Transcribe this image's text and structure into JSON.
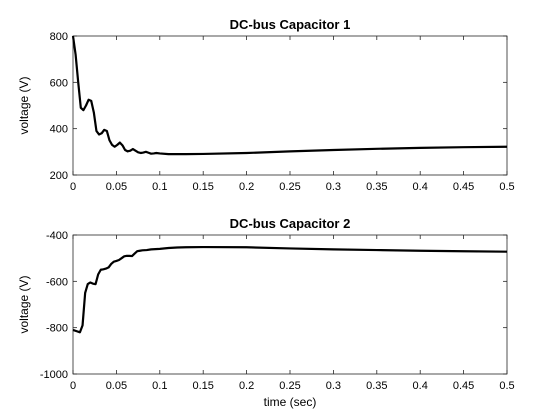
{
  "chart_data": [
    {
      "type": "line",
      "title": "DC-bus Capacitor 1",
      "xlabel": "",
      "ylabel": "voltage (V)",
      "xlim": [
        0,
        0.5
      ],
      "ylim": [
        200,
        800
      ],
      "xticks": [
        "0",
        "0.05",
        "0.1",
        "0.15",
        "0.2",
        "0.25",
        "0.3",
        "0.35",
        "0.4",
        "0.45",
        "0.5"
      ],
      "yticks": [
        "200",
        "400",
        "600",
        "800"
      ],
      "grid": false,
      "series": [
        {
          "x": [
            0,
            0.003,
            0.006,
            0.009,
            0.012,
            0.015,
            0.018,
            0.021,
            0.024,
            0.027,
            0.03,
            0.033,
            0.036,
            0.039,
            0.042,
            0.045,
            0.048,
            0.051,
            0.054,
            0.057,
            0.06,
            0.063,
            0.066,
            0.069,
            0.072,
            0.075,
            0.078,
            0.081,
            0.084,
            0.087,
            0.09,
            0.093,
            0.096,
            0.1,
            0.11,
            0.12,
            0.13,
            0.15,
            0.2,
            0.25,
            0.3,
            0.35,
            0.4,
            0.45,
            0.5
          ],
          "values": [
            800,
            720,
            600,
            490,
            480,
            500,
            525,
            520,
            470,
            390,
            375,
            380,
            395,
            390,
            350,
            330,
            322,
            330,
            340,
            328,
            308,
            302,
            305,
            312,
            305,
            298,
            295,
            297,
            300,
            296,
            292,
            293,
            295,
            293,
            290,
            290,
            290,
            291,
            295,
            302,
            308,
            313,
            317,
            320,
            322
          ]
        }
      ]
    },
    {
      "type": "line",
      "title": "DC-bus Capacitor 2",
      "xlabel": "time (sec)",
      "ylabel": "voltage (V)",
      "xlim": [
        0,
        0.5
      ],
      "ylim": [
        -1000,
        -400
      ],
      "xticks": [
        "0",
        "0.05",
        "0.1",
        "0.15",
        "0.2",
        "0.25",
        "0.3",
        "0.35",
        "0.4",
        "0.45",
        "0.5"
      ],
      "yticks": [
        "-1000",
        "-800",
        "-600",
        "-400"
      ],
      "grid": false,
      "series": [
        {
          "x": [
            0,
            0.004,
            0.008,
            0.011,
            0.014,
            0.017,
            0.02,
            0.023,
            0.026,
            0.029,
            0.032,
            0.035,
            0.038,
            0.041,
            0.044,
            0.047,
            0.05,
            0.053,
            0.056,
            0.059,
            0.062,
            0.065,
            0.068,
            0.071,
            0.074,
            0.077,
            0.08,
            0.085,
            0.09,
            0.1,
            0.11,
            0.12,
            0.13,
            0.15,
            0.2,
            0.25,
            0.3,
            0.35,
            0.4,
            0.45,
            0.5
          ],
          "values": [
            -810,
            -815,
            -820,
            -790,
            -650,
            -612,
            -605,
            -610,
            -612,
            -570,
            -550,
            -548,
            -545,
            -540,
            -525,
            -515,
            -512,
            -508,
            -500,
            -492,
            -490,
            -490,
            -491,
            -480,
            -470,
            -468,
            -466,
            -465,
            -462,
            -460,
            -456,
            -454,
            -453,
            -452,
            -453,
            -458,
            -462,
            -465,
            -468,
            -470,
            -472
          ]
        }
      ]
    }
  ]
}
